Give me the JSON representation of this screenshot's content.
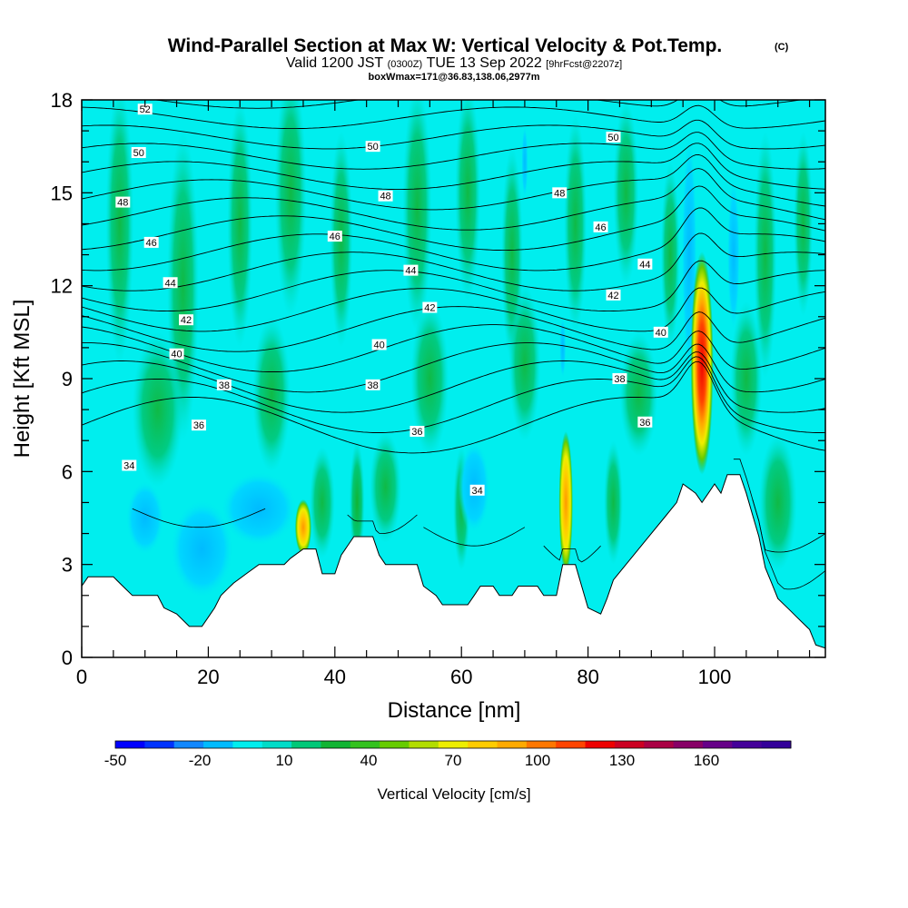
{
  "header": {
    "title_main": "Wind-Parallel Section at Max W: Vertical Velocity & Pot.Temp.",
    "title_mark": "(C)",
    "valid_prefix": "Valid 1200 JST",
    "valid_utc": "(0300Z)",
    "valid_date": "TUE 13 Sep 2022",
    "forecast": "[9hrFcst@2207z]",
    "box_info": "boxWmax=171@36.83,138.06,2977m"
  },
  "chart_data": {
    "type": "heatmap",
    "title": "Wind-Parallel Section at Max W: Vertical Velocity & Pot.Temp.",
    "xlabel": "Distance [nm]",
    "ylabel": "Height [Kft MSL]",
    "xlim": [
      0,
      117.5
    ],
    "ylim": [
      0,
      18
    ],
    "x_ticks": [
      0,
      20,
      40,
      60,
      80,
      100
    ],
    "y_ticks": [
      0,
      3,
      6,
      9,
      12,
      15,
      18
    ],
    "colorbar": {
      "label": "Vertical Velocity [cm/s]",
      "min": -50,
      "max": 180,
      "step": 10,
      "tick_values": [
        -50,
        -20,
        10,
        40,
        70,
        100,
        130,
        160
      ],
      "colors": [
        "#0000ff",
        "#0033ff",
        "#1188ff",
        "#00bbff",
        "#00eeee",
        "#00dcc8",
        "#00c878",
        "#11b433",
        "#33c21e",
        "#66cc00",
        "#b2dd00",
        "#eeee00",
        "#ffcc00",
        "#ffaa00",
        "#ff7700",
        "#ff4400",
        "#ee0000",
        "#cc0022",
        "#aa0044",
        "#880066",
        "#660088",
        "#440099",
        "#330099"
      ]
    },
    "terrain_kft": [
      [
        0,
        2.3
      ],
      [
        1,
        2.6
      ],
      [
        5,
        2.6
      ],
      [
        7,
        2.2
      ],
      [
        8,
        2.0
      ],
      [
        12,
        2.0
      ],
      [
        13,
        1.6
      ],
      [
        15,
        1.4
      ],
      [
        17,
        1.0
      ],
      [
        19,
        1.0
      ],
      [
        20,
        1.3
      ],
      [
        21,
        1.6
      ],
      [
        22,
        2.0
      ],
      [
        24,
        2.4
      ],
      [
        26,
        2.7
      ],
      [
        28,
        3.0
      ],
      [
        32,
        3.0
      ],
      [
        33,
        3.2
      ],
      [
        35,
        3.5
      ],
      [
        37,
        3.5
      ],
      [
        38,
        2.7
      ],
      [
        40,
        2.7
      ],
      [
        41,
        3.3
      ],
      [
        43,
        3.9
      ],
      [
        46,
        3.9
      ],
      [
        47,
        3.3
      ],
      [
        48,
        3.0
      ],
      [
        53,
        3.0
      ],
      [
        54,
        2.3
      ],
      [
        56,
        2.0
      ],
      [
        57,
        1.7
      ],
      [
        61,
        1.7
      ],
      [
        62,
        2.0
      ],
      [
        63,
        2.3
      ],
      [
        65,
        2.3
      ],
      [
        66,
        2.0
      ],
      [
        68,
        2.0
      ],
      [
        69,
        2.3
      ],
      [
        72,
        2.3
      ],
      [
        73,
        2.0
      ],
      [
        75,
        2.0
      ],
      [
        76,
        3.0
      ],
      [
        78,
        3.0
      ],
      [
        79,
        2.3
      ],
      [
        80,
        1.6
      ],
      [
        82,
        1.4
      ],
      [
        83,
        1.9
      ],
      [
        84,
        2.5
      ],
      [
        86,
        3.0
      ],
      [
        88,
        3.5
      ],
      [
        90,
        4.0
      ],
      [
        92,
        4.5
      ],
      [
        94,
        5.0
      ],
      [
        95,
        5.6
      ],
      [
        97,
        5.3
      ],
      [
        98,
        5.0
      ],
      [
        99,
        5.3
      ],
      [
        100,
        5.6
      ],
      [
        101,
        5.3
      ],
      [
        102,
        5.9
      ],
      [
        104,
        5.9
      ],
      [
        105,
        5.3
      ],
      [
        106,
        4.6
      ],
      [
        107,
        3.9
      ],
      [
        108,
        2.9
      ],
      [
        109,
        2.4
      ],
      [
        110,
        1.9
      ],
      [
        112,
        1.5
      ],
      [
        113,
        1.3
      ],
      [
        114,
        1.1
      ],
      [
        115,
        0.9
      ],
      [
        116,
        0.4
      ],
      [
        117.5,
        0.3
      ]
    ],
    "vertical_velocity_peaks_cm_s": [
      {
        "x": 98,
        "y_kft": 9.5,
        "max": 171
      },
      {
        "x": 76.5,
        "y_kft": 5.0,
        "max": 100
      },
      {
        "x": 43.5,
        "y_kft": 5.0,
        "max": 35
      },
      {
        "x": 35,
        "y_kft": 4.2,
        "max": 55
      }
    ],
    "contour_labels": [
      {
        "value": "52",
        "x": 10,
        "y_kft": 17.7
      },
      {
        "value": "50",
        "x": 9,
        "y_kft": 16.3
      },
      {
        "value": "50",
        "x": 46,
        "y_kft": 16.5
      },
      {
        "value": "50",
        "x": 84,
        "y_kft": 16.8
      },
      {
        "value": "48",
        "x": 6.5,
        "y_kft": 14.7
      },
      {
        "value": "48",
        "x": 48,
        "y_kft": 14.9
      },
      {
        "value": "48",
        "x": 75.5,
        "y_kft": 15.0
      },
      {
        "value": "46",
        "x": 11,
        "y_kft": 13.4
      },
      {
        "value": "46",
        "x": 40,
        "y_kft": 13.6
      },
      {
        "value": "46",
        "x": 82,
        "y_kft": 13.9
      },
      {
        "value": "44",
        "x": 14,
        "y_kft": 12.1
      },
      {
        "value": "44",
        "x": 52,
        "y_kft": 12.5
      },
      {
        "value": "44",
        "x": 89,
        "y_kft": 12.7
      },
      {
        "value": "42",
        "x": 16.5,
        "y_kft": 10.9
      },
      {
        "value": "42",
        "x": 55,
        "y_kft": 11.3
      },
      {
        "value": "42",
        "x": 84,
        "y_kft": 11.7
      },
      {
        "value": "40",
        "x": 15,
        "y_kft": 9.8
      },
      {
        "value": "40",
        "x": 47,
        "y_kft": 10.1
      },
      {
        "value": "40",
        "x": 91.5,
        "y_kft": 10.5
      },
      {
        "value": "38",
        "x": 22.5,
        "y_kft": 8.8
      },
      {
        "value": "38",
        "x": 46,
        "y_kft": 8.8
      },
      {
        "value": "38",
        "x": 85,
        "y_kft": 9.0
      },
      {
        "value": "36",
        "x": 18.5,
        "y_kft": 7.5
      },
      {
        "value": "36",
        "x": 53,
        "y_kft": 7.3
      },
      {
        "value": "36",
        "x": 89,
        "y_kft": 7.6
      },
      {
        "value": "34",
        "x": 7.5,
        "y_kft": 6.2
      },
      {
        "value": "34",
        "x": 62.5,
        "y_kft": 5.4
      }
    ]
  }
}
